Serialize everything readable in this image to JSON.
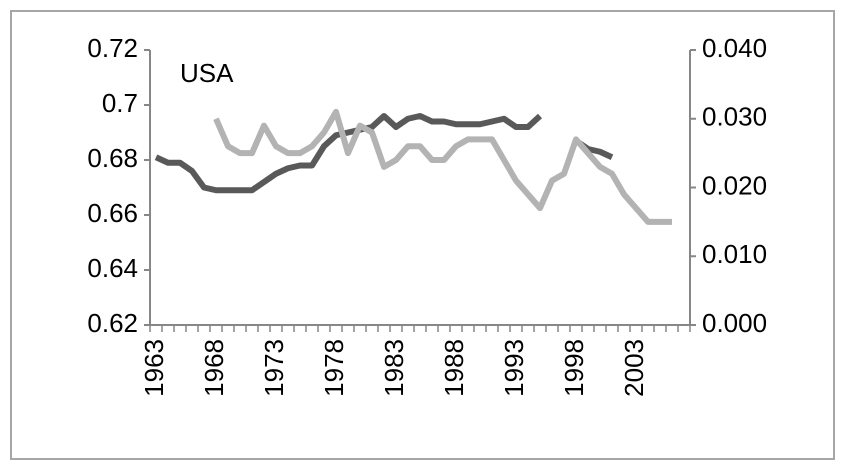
{
  "chart_data": {
    "type": "line",
    "annotation": "USA",
    "categories": [
      "1963",
      null,
      null,
      null,
      null,
      "1968",
      null,
      null,
      null,
      null,
      "1973",
      null,
      null,
      null,
      null,
      "1978",
      null,
      null,
      null,
      null,
      "1983",
      null,
      null,
      null,
      null,
      "1988",
      null,
      null,
      null,
      null,
      "1993",
      null,
      null,
      null,
      null,
      "1998",
      null,
      null,
      null,
      null,
      "2003",
      null,
      null,
      null,
      null
    ],
    "series": [
      {
        "color": "#595959",
        "values": [
          0.681,
          0.679,
          0.679,
          0.676,
          0.67,
          0.669,
          0.669,
          0.669,
          0.669,
          0.672,
          0.675,
          0.677,
          0.678,
          0.678,
          0.685,
          0.689,
          0.69,
          0.691,
          0.692,
          0.696,
          0.692,
          0.695,
          0.696,
          0.694,
          0.694,
          0.693,
          0.693,
          0.693,
          0.694,
          0.695,
          0.692,
          0.692,
          0.696,
          null,
          null,
          0.687,
          0.684,
          0.683,
          0.681,
          null,
          null,
          null,
          null,
          null,
          null
        ]
      },
      {
        "color": "#b3b3b3",
        "axis": "y2",
        "values": [
          null,
          null,
          null,
          null,
          null,
          0.03,
          0.026,
          0.025,
          0.025,
          0.029,
          0.026,
          0.025,
          0.025,
          0.026,
          0.028,
          0.031,
          0.025,
          0.029,
          0.028,
          0.023,
          0.024,
          0.026,
          0.026,
          0.024,
          0.024,
          0.026,
          0.027,
          0.027,
          0.027,
          0.024,
          0.021,
          0.019,
          0.017,
          0.021,
          0.022,
          0.027,
          0.025,
          0.023,
          0.022,
          0.019,
          0.017,
          0.015,
          0.015,
          0.015,
          null
        ]
      }
    ],
    "ylim": [
      0.62,
      0.72
    ],
    "yticks": [
      0.62,
      0.64,
      0.66,
      0.68,
      0.7,
      0.72
    ],
    "y2lim": [
      0,
      0.04
    ],
    "y2ticks": [
      {
        "value": 0,
        "label": "0.000"
      },
      {
        "value": 0.01,
        "label": "0.010"
      },
      {
        "value": 0.02,
        "label": "0.020"
      },
      {
        "value": 0.03,
        "label": "0.030"
      },
      {
        "value": 0.04,
        "label": "0.040"
      }
    ],
    "grid": false
  }
}
